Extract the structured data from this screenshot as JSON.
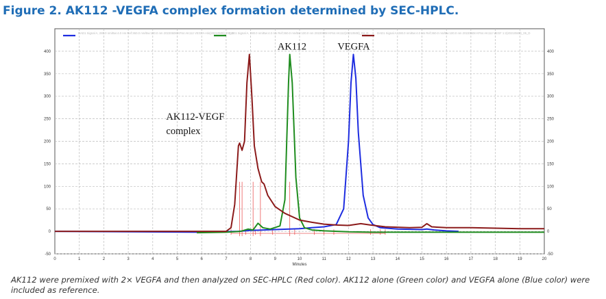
{
  "figure_title": "Figure 2. AK112 -VEGFA complex formation determined by SEC-HPLC.",
  "caption": "AK112 were premixed with 2× VEGFA and then analyzed on SEC-HPLC (Red color). AK112 alone (Green color) and VEGFA alone (Blue color) were included as reference.",
  "colors": {
    "title": "#1f6db6",
    "red": "#8b1a1a",
    "green": "#1e8c1e",
    "blue": "#1d2ce0",
    "marker": "#e84040"
  },
  "chart_data": {
    "type": "line",
    "xlabel": "Minutes",
    "ylabel": "",
    "xlim": [
      0,
      20
    ],
    "ylim": [
      -50,
      450
    ],
    "xticks": [
      0,
      1,
      2,
      3,
      4,
      5,
      6,
      7,
      8,
      9,
      10,
      11,
      12,
      13,
      14,
      15,
      16,
      17,
      18,
      19,
      20
    ],
    "yticks": [
      -50,
      0,
      50,
      100,
      150,
      200,
      250,
      300,
      350,
      400
    ],
    "grid": true,
    "annotations": [
      {
        "text": "AK112",
        "x": 9.1,
        "y": 404
      },
      {
        "text": "VEGFA",
        "x": 11.55,
        "y": 404
      },
      {
        "text": "AK112-VEGF",
        "x": 4.55,
        "y": 248
      },
      {
        "text": "complex",
        "x": 4.55,
        "y": 216
      }
    ],
    "series": [
      {
        "name": "DAD1 Signal A, 280.0 nm/Bw:4.0 nm Ref:360.0 nm/Bw:100.0 nm 20220608 KF64 AK112 VEGFA-His(20210508)_03_D",
        "color": "#1d2ce0",
        "points": [
          [
            0,
            0
          ],
          [
            6,
            -2
          ],
          [
            7.5,
            0
          ],
          [
            8,
            2
          ],
          [
            9,
            4
          ],
          [
            10,
            6
          ],
          [
            10.5,
            8
          ],
          [
            11,
            10
          ],
          [
            11.5,
            15
          ],
          [
            11.8,
            50
          ],
          [
            12,
            200
          ],
          [
            12.1,
            330
          ],
          [
            12.2,
            393
          ],
          [
            12.3,
            340
          ],
          [
            12.4,
            220
          ],
          [
            12.6,
            80
          ],
          [
            12.8,
            30
          ],
          [
            13,
            15
          ],
          [
            13.3,
            8
          ],
          [
            14,
            5
          ],
          [
            15,
            4
          ],
          [
            15.2,
            5
          ],
          [
            15.5,
            3
          ],
          [
            16,
            1
          ],
          [
            16.5,
            0
          ]
        ]
      },
      {
        "name": "DAD1 Signal A, 280.0 nm/Bw:4.0 nm Ref:360.0 nm/Bw:100.0 nm 20220608 KF64 AK112(20210508)_04_D",
        "color": "#1e8c1e",
        "points": [
          [
            5.8,
            -3
          ],
          [
            7,
            -2
          ],
          [
            7.6,
            0
          ],
          [
            7.9,
            5
          ],
          [
            8.1,
            3
          ],
          [
            8.3,
            18
          ],
          [
            8.5,
            8
          ],
          [
            8.8,
            5
          ],
          [
            9.2,
            12
          ],
          [
            9.4,
            70
          ],
          [
            9.55,
            330
          ],
          [
            9.6,
            393
          ],
          [
            9.7,
            330
          ],
          [
            9.85,
            120
          ],
          [
            10,
            30
          ],
          [
            10.2,
            8
          ],
          [
            10.5,
            3
          ],
          [
            11,
            1
          ],
          [
            12,
            -1
          ],
          [
            13,
            -2
          ],
          [
            15,
            -2
          ],
          [
            17,
            -2
          ],
          [
            20,
            -2
          ]
        ]
      },
      {
        "name": "DAD1 Signal A, 280.0 nm/Bw:4.0 nm Ref:360.0 nm/Bw:100.0 nm 20220608 KF64 AK112 VEGF 1:2(20210508)_05_D",
        "color": "#8b1a1a",
        "points": [
          [
            0,
            0
          ],
          [
            6,
            0
          ],
          [
            7,
            0
          ],
          [
            7.2,
            8
          ],
          [
            7.35,
            60
          ],
          [
            7.5,
            190
          ],
          [
            7.55,
            196
          ],
          [
            7.65,
            180
          ],
          [
            7.75,
            200
          ],
          [
            7.85,
            330
          ],
          [
            7.95,
            393
          ],
          [
            8.05,
            300
          ],
          [
            8.15,
            190
          ],
          [
            8.3,
            140
          ],
          [
            8.45,
            110
          ],
          [
            8.55,
            105
          ],
          [
            8.7,
            80
          ],
          [
            9,
            55
          ],
          [
            9.4,
            40
          ],
          [
            10,
            25
          ],
          [
            10.5,
            20
          ],
          [
            11,
            16
          ],
          [
            11.5,
            14
          ],
          [
            12,
            13
          ],
          [
            12.5,
            17
          ],
          [
            12.9,
            14
          ],
          [
            13.5,
            10
          ],
          [
            14.5,
            8
          ],
          [
            15,
            9
          ],
          [
            15.2,
            17
          ],
          [
            15.4,
            10
          ],
          [
            16,
            8
          ],
          [
            17,
            8
          ],
          [
            18,
            7
          ],
          [
            19,
            6
          ],
          [
            20,
            6
          ]
        ]
      }
    ]
  }
}
